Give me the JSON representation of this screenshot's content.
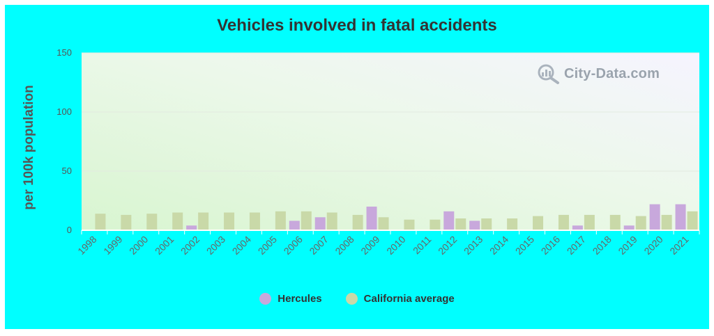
{
  "chart_data": {
    "type": "bar",
    "title": "Vehicles involved in fatal accidents",
    "ylabel": "per 100k population",
    "xlabel": "",
    "ylim": [
      0,
      150
    ],
    "yticks": [
      0,
      50,
      100,
      150
    ],
    "grid": true,
    "legend_position": "bottom",
    "categories": [
      "1998",
      "1999",
      "2000",
      "2001",
      "2002",
      "2003",
      "2004",
      "2005",
      "2006",
      "2007",
      "2008",
      "2009",
      "2010",
      "2011",
      "2012",
      "2013",
      "2014",
      "2015",
      "2016",
      "2017",
      "2018",
      "2019",
      "2020",
      "2021"
    ],
    "series": [
      {
        "name": "Hercules",
        "color": "#c8a8dc",
        "values": [
          0,
          0,
          0,
          0,
          4,
          0,
          0,
          0,
          8,
          11,
          0,
          20,
          0,
          0,
          16,
          8,
          0,
          0,
          0,
          4,
          0,
          4,
          22,
          22
        ]
      },
      {
        "name": "California average",
        "color": "#c9d9a8",
        "values": [
          14,
          13,
          14,
          15,
          15,
          15,
          15,
          16,
          16,
          15,
          13,
          11,
          9,
          9,
          10,
          10,
          10,
          12,
          13,
          13,
          13,
          12,
          13,
          16
        ]
      }
    ]
  },
  "watermark": {
    "text": "City-Data.com",
    "icon": "magnifier-icon"
  }
}
